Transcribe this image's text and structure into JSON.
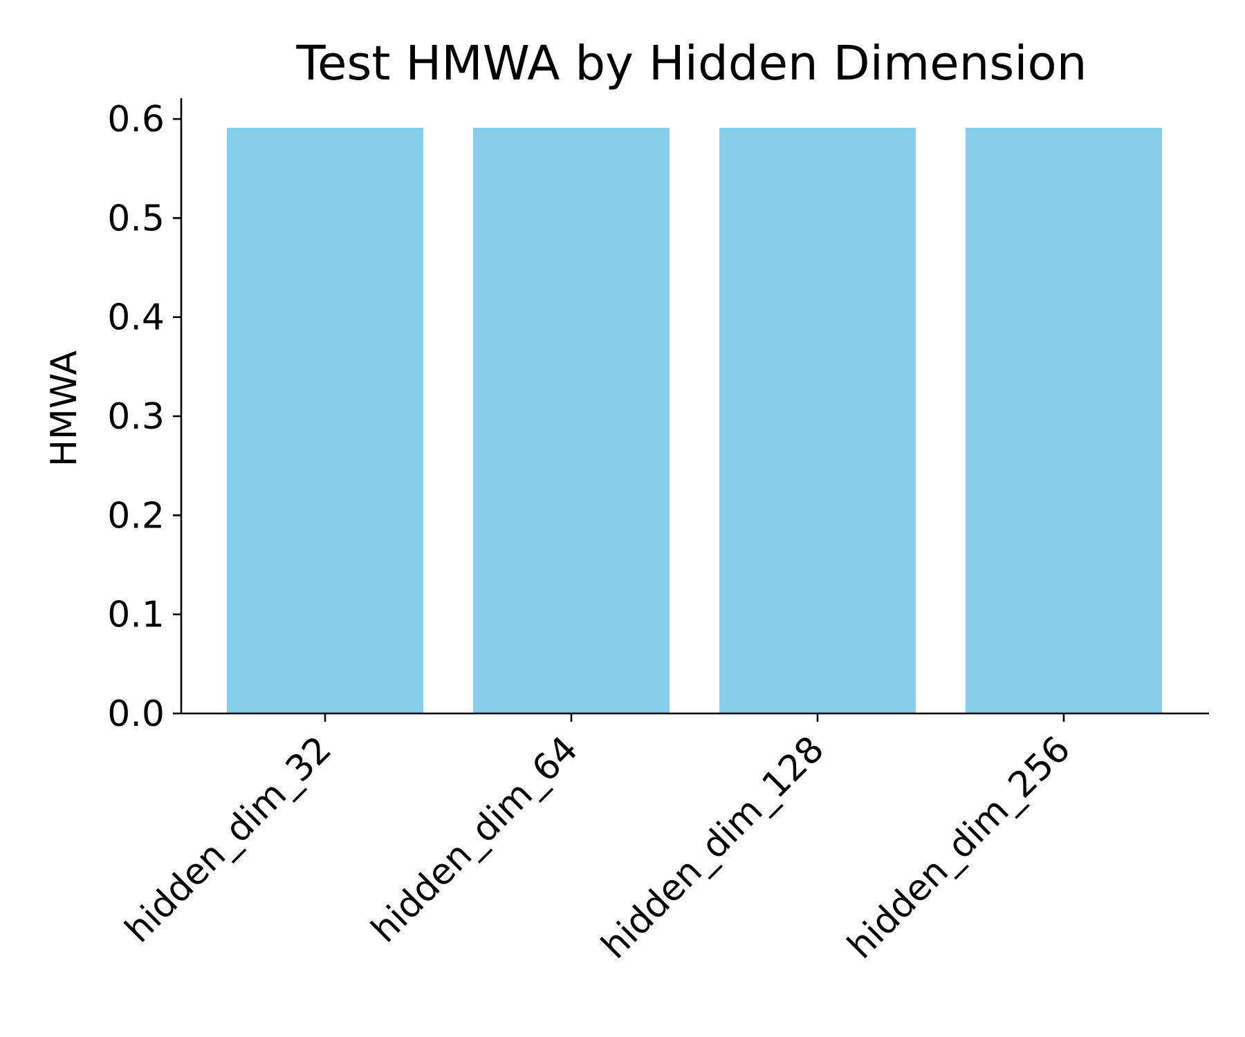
{
  "chart_data": {
    "type": "bar",
    "title": "Test HMWA by Hidden Dimension",
    "xlabel": "",
    "ylabel": "HMWA",
    "categories": [
      "hidden_dim_32",
      "hidden_dim_64",
      "hidden_dim_128",
      "hidden_dim_256"
    ],
    "values": [
      0.591,
      0.591,
      0.591,
      0.591
    ],
    "ylim": [
      0,
      0.621
    ],
    "yticks": [
      0.0,
      0.1,
      0.2,
      0.3,
      0.4,
      0.5,
      0.6
    ],
    "ytick_labels": [
      "0.0",
      "0.1",
      "0.2",
      "0.3",
      "0.4",
      "0.5",
      "0.6"
    ],
    "grid": false,
    "legend": "none",
    "bar_color": "#87CEEB",
    "axis_color": "#000000",
    "xtick_rotation": "45 degrees"
  }
}
